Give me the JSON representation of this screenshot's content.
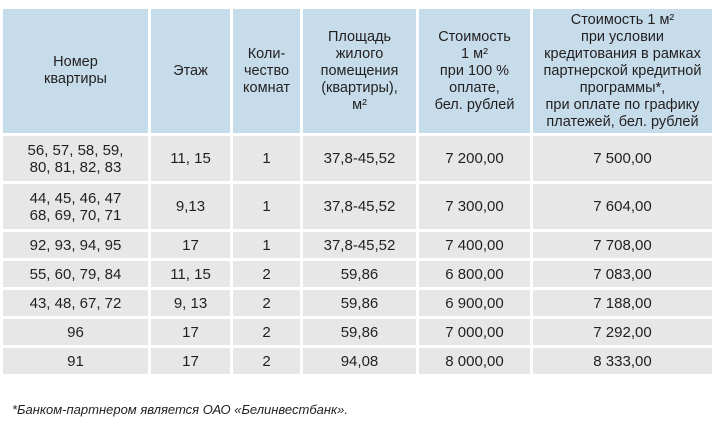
{
  "table": {
    "header": [
      "Номер\nквартиры",
      "Этаж",
      "Коли-\nчество\nкомнат",
      "Площадь\nжилого\nпомещения\n(квартиры),\nм²",
      "Стоимость\n1 м²\nпри 100 %\nоплате,\nбел. рублей",
      "Стоимость 1 м²\nпри условии\nкредитования в рамках\nпартнерской кредитной\nпрограммы*,\nпри оплате по графику\nплатежей, бел. рублей"
    ],
    "rows": [
      [
        "56, 57, 58, 59,\n80, 81, 82, 83",
        "11, 15",
        "1",
        "37,8-45,52",
        "7 200,00",
        "7 500,00"
      ],
      [
        "44, 45, 46, 47\n68, 69, 70, 71",
        "9,13",
        "1",
        "37,8-45,52",
        "7 300,00",
        "7 604,00"
      ],
      [
        "92, 93, 94, 95",
        "17",
        "1",
        "37,8-45,52",
        "7 400,00",
        "7 708,00"
      ],
      [
        "55, 60, 79, 84",
        "11, 15",
        "2",
        "59,86",
        "6 800,00",
        "7 083,00"
      ],
      [
        "43, 48, 67, 72",
        "9, 13",
        "2",
        "59,86",
        "6 900,00",
        "7 188,00"
      ],
      [
        "96",
        "17",
        "2",
        "59,86",
        "7 000,00",
        "7 292,00"
      ],
      [
        "91",
        "17",
        "2",
        "94,08",
        "8 000,00",
        "8 333,00"
      ]
    ]
  },
  "footnote": "*Банком-партнером является ОАО «Белинвестбанк»."
}
